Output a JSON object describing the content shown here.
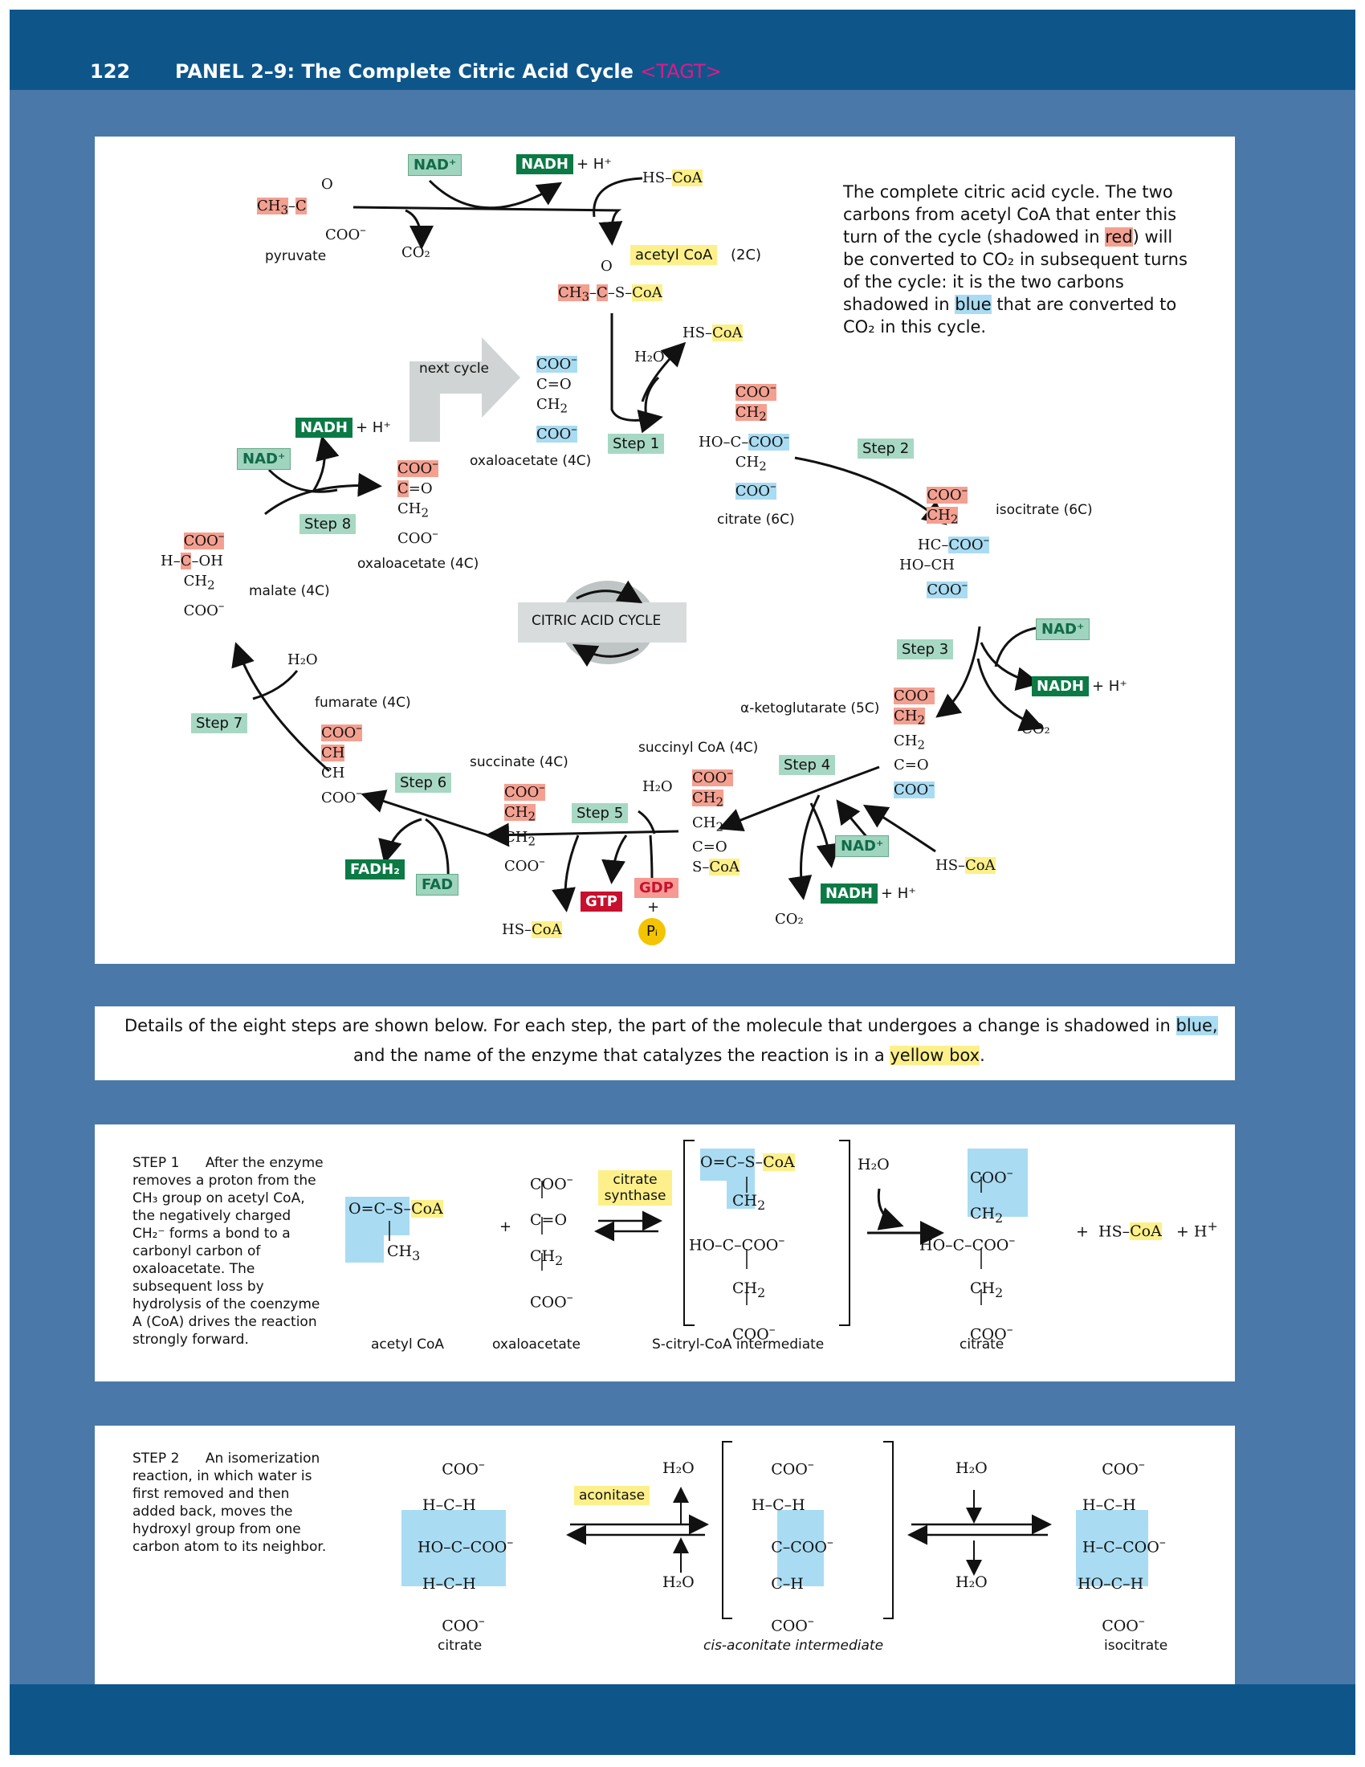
{
  "header": {
    "page_number": "122",
    "title": "PANEL 2–9: The Complete Citric Acid Cycle",
    "tag": "<TAGT>"
  },
  "cycle": {
    "pyruvate_label": "pyruvate",
    "co2": "CO₂",
    "nad_plus": "NAD⁺",
    "nadh": "NADH",
    "plus_h": "+ H⁺",
    "hs": "HS–",
    "coa": "CoA",
    "acetyl_coa": "acetyl CoA",
    "two_c": "(2C)",
    "h2o": "H₂O",
    "next_cycle": "next cycle",
    "oxaloacetate_4c": "oxaloacetate (4C)",
    "citrate_6c": "citrate (6C)",
    "isocitrate_6c": "isocitrate (6C)",
    "akg_5c": "α-ketoglutarate (5C)",
    "succinyl_coa_4c": "succinyl CoA (4C)",
    "succinate_4c": "succinate (4C)",
    "fumarate_4c": "fumarate (4C)",
    "malate_4c": "malate (4C)",
    "cycle_center": "CITRIC ACID CYCLE",
    "gtp": "GTP",
    "gdp": "GDP",
    "pi": "Pᵢ",
    "fadh2": "FADH₂",
    "fad": "FAD",
    "steps": [
      "Step 1",
      "Step 2",
      "Step 3",
      "Step 4",
      "Step 5",
      "Step 6",
      "Step 7",
      "Step 8"
    ],
    "caption_a": "The complete citric acid cycle. The two",
    "caption_b": "carbons from acetyl CoA that enter this",
    "caption_c": "turn of the cycle (shadowed in",
    "caption_red": "red",
    "caption_d": ") will",
    "caption_e": "be converted to CO₂ in subsequent turns",
    "caption_f": "of the cycle: it is the two carbons",
    "caption_g": "shadowed in",
    "caption_blue": "blue",
    "caption_h": "that are converted to",
    "caption_i": "CO₂ in this cycle."
  },
  "details": {
    "line1a": "Details of the eight steps are shown below. For each step, the part of the molecule that undergoes a change is shadowed in",
    "line1_blue": "blue,",
    "line2a": "and the name of the enzyme that catalyzes the reaction is in a",
    "line2_yellow": "yellow box",
    "line2_end": "."
  },
  "step1": {
    "title": "STEP 1",
    "text_head": "After the enzyme",
    "text_lines": [
      "removes a proton from the",
      "CH₃ group on acetyl CoA,",
      "the negatively charged",
      "CH₂⁻ forms a bond to a",
      "carbonyl carbon of",
      "oxaloacetate. The",
      "subsequent loss by",
      "hydrolysis of the coenzyme",
      "A (CoA) drives the reaction",
      "strongly forward."
    ],
    "enzyme": "citrate synthase",
    "labels": [
      "acetyl CoA",
      "oxaloacetate",
      "S-citryl-CoA intermediate",
      "citrate"
    ]
  },
  "step2": {
    "title": "STEP 2",
    "text_head": "An isomerization",
    "text_lines": [
      "reaction, in which water is",
      "first removed and then",
      "added back, moves the",
      "hydroxyl group from one",
      "carbon atom to its neighbor."
    ],
    "enzyme": "aconitase",
    "labels": [
      "citrate",
      "cis-aconitate intermediate",
      "isocitrate"
    ]
  }
}
